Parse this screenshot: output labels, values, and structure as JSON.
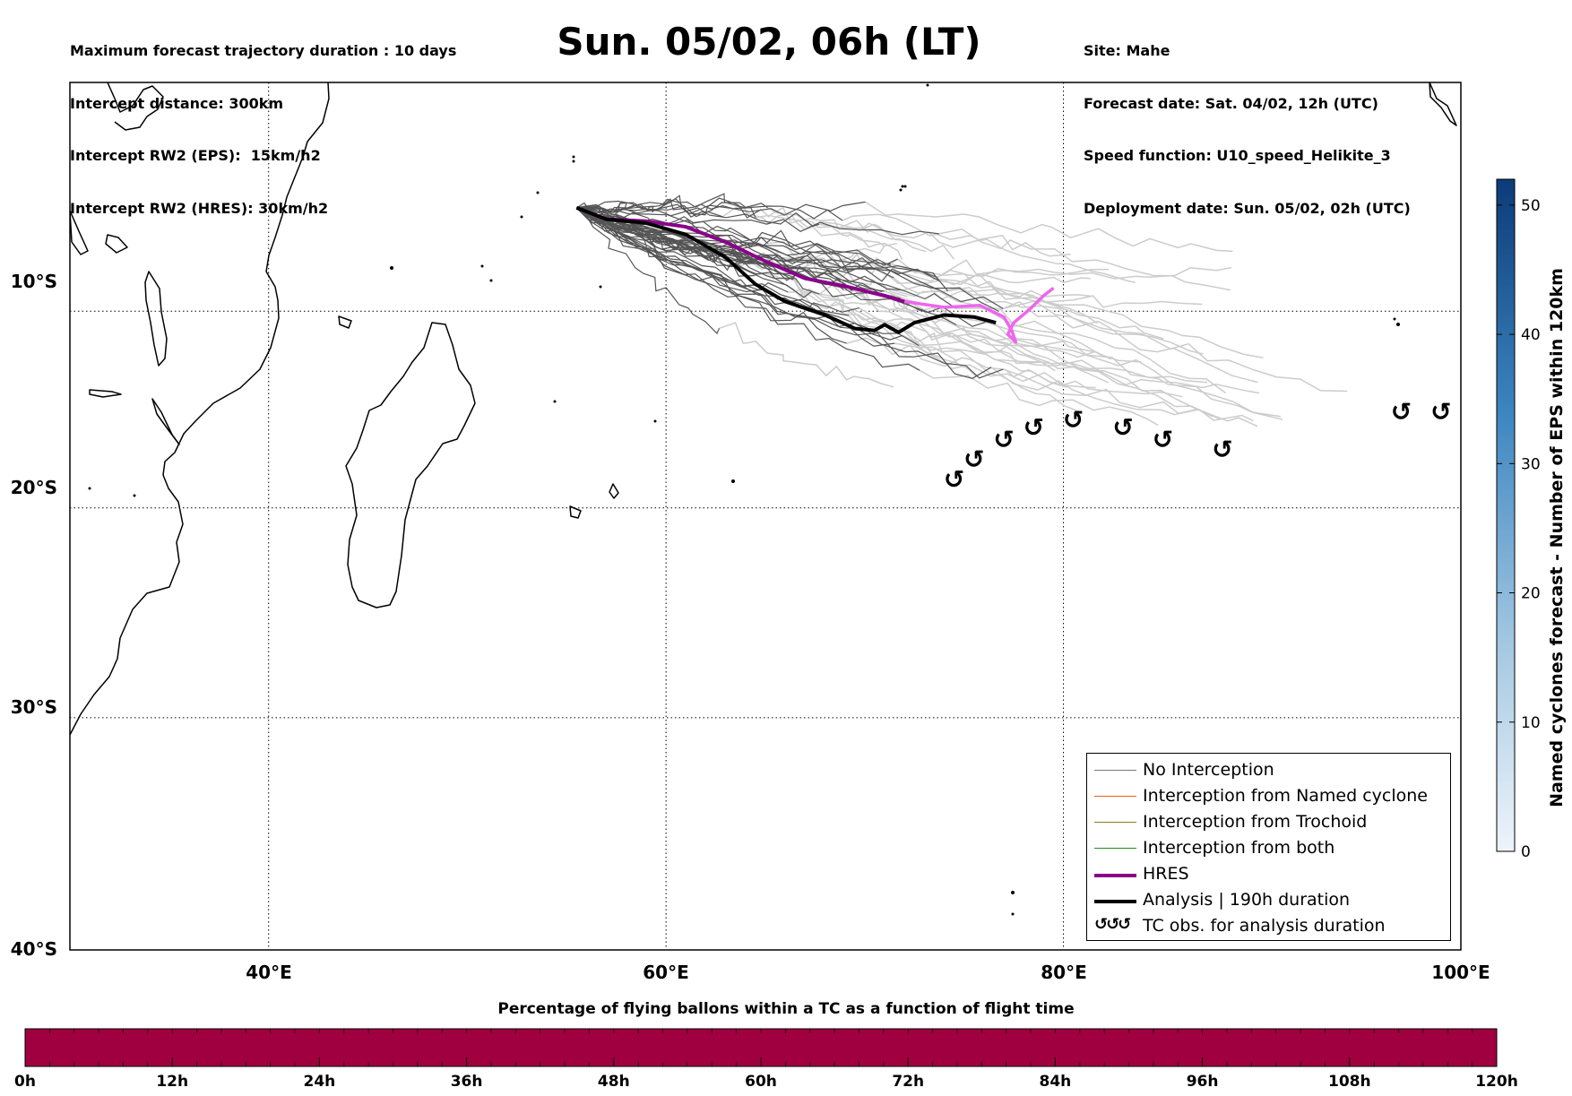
{
  "header": {
    "left_lines": [
      "Maximum forecast trajectory duration : 10 days",
      "Intercept distance: 300km",
      "Intercept RW2 (EPS):  15km/h2",
      "Intercept RW2 (HRES): 30km/h2"
    ],
    "title": "Sun. 05/02, 06h (LT)",
    "right_lines": [
      "Site: Mahe",
      "Forecast date: Sat. 04/02, 12h (UTC)",
      "Speed function: U10_speed_Helikite_3",
      "Deployment date: Sun. 05/02, 02h (UTC)"
    ]
  },
  "map": {
    "lon_range": [
      30,
      100
    ],
    "lat_range": [
      -40,
      2
    ],
    "lon_ticks": [
      "40°E",
      "60°E",
      "80°E",
      "100°E"
    ],
    "lat_ticks": [
      "10°S",
      "20°S",
      "30°S",
      "40°S"
    ],
    "grid": "dotted",
    "launch_site": {
      "name": "Mahe",
      "lon": 55.5,
      "lat": -4.6
    },
    "hres_track": [
      [
        55.5,
        -4.6
      ],
      [
        57,
        -5.2
      ],
      [
        59,
        -5.3
      ],
      [
        61,
        -5.6
      ],
      [
        63,
        -6.4
      ],
      [
        65,
        -7.4
      ],
      [
        67,
        -8.3
      ],
      [
        69,
        -8.7
      ],
      [
        71,
        -9.2
      ],
      [
        72,
        -9.5
      ],
      [
        74,
        -9.8
      ],
      [
        75.8,
        -9.7
      ],
      [
        77,
        -10.3
      ],
      [
        77.4,
        -11.0
      ],
      [
        77.6,
        -11.6
      ],
      [
        77.2,
        -11.2
      ],
      [
        77.5,
        -10.6
      ],
      [
        78.3,
        -9.9
      ],
      [
        79,
        -9.2
      ],
      [
        79.5,
        -8.8
      ]
    ],
    "analysis_track": [
      [
        55.5,
        -4.6
      ],
      [
        57,
        -5.2
      ],
      [
        59,
        -5.4
      ],
      [
        61,
        -6.0
      ],
      [
        63,
        -7.2
      ],
      [
        64.5,
        -8.6
      ],
      [
        66,
        -9.5
      ],
      [
        68,
        -10.2
      ],
      [
        69.5,
        -10.9
      ],
      [
        70.5,
        -11.0
      ],
      [
        71,
        -10.7
      ],
      [
        71.7,
        -11.1
      ],
      [
        72.5,
        -10.6
      ],
      [
        74,
        -10.2
      ],
      [
        75.5,
        -10.3
      ],
      [
        76.6,
        -10.6
      ]
    ],
    "tc_obs": [
      [
        74.5,
        -18.6
      ],
      [
        75.5,
        -17.6
      ],
      [
        77,
        -16.6
      ],
      [
        78.5,
        -16.0
      ],
      [
        80.5,
        -15.6
      ],
      [
        83,
        -16.0
      ],
      [
        85,
        -16.6
      ],
      [
        88,
        -17.1
      ],
      [
        97,
        -15.2
      ],
      [
        99,
        -15.2
      ]
    ]
  },
  "legend": {
    "items": [
      {
        "label": "No Interception",
        "color": "#777777",
        "width": 1.5,
        "kind": "line"
      },
      {
        "label": "Interception from Named cyclone",
        "color": "#e8601c",
        "width": 1.5,
        "kind": "line"
      },
      {
        "label": "Interception from Trochoid",
        "color": "#8b7d1f",
        "width": 1.5,
        "kind": "line"
      },
      {
        "label": "Interception from both",
        "color": "#228b22",
        "width": 1.5,
        "kind": "line"
      },
      {
        "label": "HRES",
        "color": "#8b008b",
        "width": 4,
        "kind": "line"
      },
      {
        "label": "Analysis | 190h duration",
        "color": "#000000",
        "width": 4,
        "kind": "line"
      },
      {
        "label": "TC obs. for analysis duration",
        "color": "#000000",
        "width": 0,
        "kind": "glyph",
        "glyph": "↺↺↺"
      }
    ]
  },
  "colorbar_vertical": {
    "label": "Named cyclones forecast - Number of EPS within 120km",
    "range": [
      0,
      52
    ],
    "ticks": [
      "0",
      "10",
      "20",
      "30",
      "40",
      "50"
    ]
  },
  "colorbar_horizontal": {
    "title": "Percentage of flying ballons within a TC as a function of flight time",
    "fill_color": "#a0003f",
    "ticks": [
      "0h",
      "12h",
      "24h",
      "36h",
      "48h",
      "60h",
      "72h",
      "84h",
      "96h",
      "108h",
      "120h"
    ]
  },
  "colors": {
    "hres": "#8b008b",
    "hres_extension": "#ee66ee",
    "analysis": "#000000",
    "eps_dark": "#555555",
    "eps_light": "#cccccc"
  }
}
